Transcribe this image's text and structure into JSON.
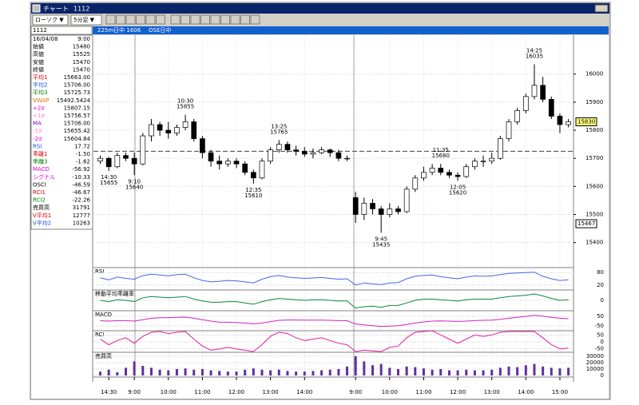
{
  "window": {
    "title": "チャート",
    "code": "1112"
  },
  "toolbar": {
    "chart_type": "ローソク ▼",
    "interval": "5分足 ▼"
  },
  "info_bar": {
    "code": "1112",
    "contract": "225m日中 1606",
    "market": "OSE日中"
  },
  "info_table": {
    "rows": [
      {
        "label": "16/04/08",
        "value": "9:00",
        "color": "#000000"
      },
      {
        "label": "始値",
        "value": "15480",
        "color": "#000000"
      },
      {
        "label": "高値",
        "value": "15525",
        "color": "#000000"
      },
      {
        "label": "安値",
        "value": "15470",
        "color": "#000000"
      },
      {
        "label": "終値",
        "value": "15470",
        "color": "#000000"
      },
      {
        "label": "平均1",
        "value": "15663.00",
        "color": "#e00000"
      },
      {
        "label": "平均2",
        "value": "15706.00",
        "color": "#2050e0"
      },
      {
        "label": "平均3",
        "value": "15725.73",
        "color": "#008000"
      },
      {
        "label": "VWAP",
        "value": "15492.5424",
        "color": "#e07000"
      },
      {
        "label": "+2σ",
        "value": "15807.15",
        "color": "#e000e0"
      },
      {
        "label": "+1σ",
        "value": "15756.57",
        "color": "#ff80c0"
      },
      {
        "label": "MA",
        "value": "15706.00",
        "color": "#8000c0"
      },
      {
        "label": "-1σ",
        "value": "15655.42",
        "color": "#ff80c0"
      },
      {
        "label": "-2σ",
        "value": "15604.84",
        "color": "#e000e0"
      },
      {
        "label": "RSI",
        "value": "17.72",
        "color": "#2050e0"
      },
      {
        "label": "乖離1",
        "value": "-1.50",
        "color": "#e00000"
      },
      {
        "label": "乖離3",
        "value": "-1.62",
        "color": "#008000"
      },
      {
        "label": "MACD",
        "value": "-56.92",
        "color": "#e000e0"
      },
      {
        "label": "シグナル",
        "value": "-10.33",
        "color": "#e000e0"
      },
      {
        "label": "OSCI",
        "value": "-46.59",
        "color": "#000000"
      },
      {
        "label": "RCI1",
        "value": "-46.67",
        "color": "#e00000"
      },
      {
        "label": "RCI2",
        "value": "-22.26",
        "color": "#008000"
      },
      {
        "label": "売買高",
        "value": "31791",
        "color": "#000000"
      },
      {
        "label": "V平均1",
        "value": "12777",
        "color": "#e00000"
      },
      {
        "label": "V平均2",
        "value": "10263",
        "color": "#2050e0"
      }
    ]
  },
  "chart_data": {
    "type": "candlestick",
    "x": [
      0,
      1,
      2,
      3,
      4,
      5,
      6,
      7,
      8,
      9,
      10,
      11,
      12,
      13,
      14,
      15,
      16,
      17,
      18,
      19,
      20,
      21,
      22,
      23,
      24,
      25,
      26,
      27,
      28,
      29,
      30,
      31,
      32,
      33,
      34,
      35,
      36,
      37,
      38,
      39,
      40,
      41,
      42,
      43,
      44,
      45,
      46,
      47,
      48,
      49,
      50,
      51,
      52,
      53,
      54,
      55
    ],
    "open": [
      15690,
      15700,
      15670,
      15710,
      15700,
      15680,
      15780,
      15820,
      15800,
      15790,
      15810,
      15830,
      15770,
      15720,
      15690,
      15680,
      15690,
      15680,
      15650,
      15630,
      15690,
      15730,
      15750,
      15730,
      15725,
      15715,
      15720,
      15730,
      15720,
      15700,
      15560,
      15500,
      15540,
      15520,
      15500,
      15520,
      15510,
      15590,
      15630,
      15650,
      15665,
      15650,
      15640,
      15635,
      15670,
      15690,
      15690,
      15700,
      15770,
      15830,
      15870,
      15920,
      15960,
      15910,
      15850,
      15820
    ],
    "high": [
      15710,
      15705,
      15720,
      15720,
      15720,
      15790,
      15840,
      15830,
      15830,
      15820,
      15855,
      15840,
      15780,
      15730,
      15710,
      15700,
      15700,
      15690,
      15660,
      15700,
      15740,
      15765,
      15760,
      15745,
      15740,
      15735,
      15740,
      15735,
      15730,
      15710,
      15580,
      15560,
      15555,
      15530,
      15540,
      15530,
      15600,
      15640,
      15670,
      15680,
      15680,
      15660,
      15650,
      15680,
      15700,
      15710,
      15720,
      15780,
      15840,
      15880,
      15930,
      16035,
      15990,
      15920,
      15860,
      15840
    ],
    "low": [
      15680,
      15655,
      15665,
      15690,
      15640,
      15675,
      15760,
      15780,
      15770,
      15780,
      15800,
      15760,
      15700,
      15670,
      15660,
      15670,
      15665,
      15640,
      15610,
      15625,
      15680,
      15720,
      15720,
      15710,
      15705,
      15700,
      15715,
      15705,
      15690,
      15690,
      15470,
      15480,
      15500,
      15435,
      15490,
      15500,
      15505,
      15580,
      15620,
      15640,
      15640,
      15630,
      15620,
      15630,
      15660,
      15670,
      15680,
      15695,
      15760,
      15820,
      15860,
      15910,
      15900,
      15840,
      15790,
      15810
    ],
    "close": [
      15700,
      15670,
      15710,
      15700,
      15680,
      15780,
      15820,
      15800,
      15790,
      15810,
      15830,
      15770,
      15720,
      15690,
      15680,
      15690,
      15680,
      15650,
      15630,
      15690,
      15730,
      15750,
      15730,
      15725,
      15715,
      15720,
      15730,
      15720,
      15700,
      15700,
      15500,
      15540,
      15520,
      15500,
      15520,
      15510,
      15590,
      15630,
      15650,
      15665,
      15650,
      15640,
      15635,
      15670,
      15690,
      15690,
      15700,
      15770,
      15830,
      15870,
      15920,
      15960,
      15910,
      15850,
      15820,
      15830
    ],
    "up_color": "#ffffff",
    "down_color": "#000000",
    "xlim": [
      -0.8,
      55.6
    ],
    "ylim": [
      15325,
      16150
    ],
    "xticks": [
      {
        "value": 1,
        "label": "14:30"
      },
      {
        "value": 4,
        "label": "9:00"
      },
      {
        "value": 8,
        "label": "10:00"
      },
      {
        "value": 12,
        "label": "11:00"
      },
      {
        "value": 16,
        "label": "12:00"
      },
      {
        "value": 20,
        "label": "13:00"
      },
      {
        "value": 24,
        "label": "14:00"
      },
      {
        "value": 30,
        "label": "9:00"
      },
      {
        "value": 34,
        "label": "10:00"
      },
      {
        "value": 38,
        "label": "11:00"
      },
      {
        "value": 42,
        "label": "12:00"
      },
      {
        "value": 46,
        "label": "13:00"
      },
      {
        "value": 50,
        "label": "14:00"
      },
      {
        "value": 54,
        "label": "15:00"
      }
    ],
    "yticks": [
      15400,
      15500,
      15600,
      15700,
      15800,
      15900,
      16000
    ],
    "grid": true,
    "reference_line": 15725,
    "last_price": 15830,
    "last_price_color": "#ffff80",
    "axis_marker": 15467,
    "annotations": [
      {
        "time": "14:30",
        "price": 15655,
        "x": 1,
        "side": "below"
      },
      {
        "time": "9:10",
        "price": 15640,
        "x": 4,
        "side": "below"
      },
      {
        "time": "10:30",
        "price": 15855,
        "x": 10,
        "side": "above"
      },
      {
        "time": "12:35",
        "price": 15610,
        "x": 18,
        "side": "below"
      },
      {
        "time": "13:25",
        "price": 15765,
        "x": 21,
        "side": "above"
      },
      {
        "time": "9:45",
        "price": 15435,
        "x": 33,
        "side": "below"
      },
      {
        "time": "11:35",
        "price": 15680,
        "x": 40,
        "side": "above"
      },
      {
        "time": "12:05",
        "price": 15620,
        "x": 42,
        "side": "below"
      },
      {
        "time": "14:25",
        "price": 16035,
        "x": 51,
        "side": "above"
      }
    ],
    "panels": [
      {
        "type": "line",
        "title": "RSI",
        "ylim": [
          0,
          100
        ],
        "yticks": [
          20,
          80
        ],
        "color": "#4169e1",
        "values": [
          55,
          45,
          58,
          52,
          48,
          65,
          72,
          68,
          64,
          70,
          72,
          55,
          42,
          35,
          38,
          42,
          40,
          35,
          30,
          48,
          60,
          66,
          58,
          55,
          52,
          54,
          56,
          52,
          48,
          50,
          20,
          30,
          25,
          22,
          30,
          32,
          50,
          62,
          66,
          68,
          60,
          55,
          50,
          58,
          64,
          62,
          64,
          70,
          76,
          78,
          80,
          82,
          62,
          50,
          42,
          45
        ]
      },
      {
        "type": "line",
        "title": "移動平均乖離率",
        "ylim": [
          -1.5,
          1.5
        ],
        "yticks": [
          0
        ],
        "color": "#0a8a3a",
        "values": [
          0,
          -0.2,
          0.1,
          0,
          -0.2,
          0.4,
          0.6,
          0.5,
          0.4,
          0.5,
          0.6,
          0.2,
          -0.1,
          -0.3,
          -0.3,
          -0.2,
          -0.2,
          -0.4,
          -0.6,
          -0.2,
          0.1,
          0.3,
          0.2,
          0.1,
          0,
          0.1,
          0.1,
          0,
          -0.1,
          -0.1,
          -1.2,
          -1.0,
          -0.9,
          -1.1,
          -0.8,
          -0.8,
          -0.4,
          0,
          0.2,
          0.2,
          0.1,
          0,
          -0.1,
          0.1,
          0.2,
          0.2,
          0.2,
          0.4,
          0.6,
          0.7,
          0.8,
          1.0,
          0.7,
          0.3,
          0,
          0.1
        ]
      },
      {
        "type": "line",
        "title": "MACD",
        "ylim": [
          -100,
          100
        ],
        "yticks": [
          -50,
          50
        ],
        "color": "#d020c0",
        "values": [
          5,
          0,
          5,
          5,
          0,
          15,
          30,
          35,
          35,
          40,
          42,
          30,
          15,
          0,
          -10,
          -12,
          -14,
          -20,
          -28,
          -20,
          -5,
          8,
          12,
          12,
          10,
          10,
          10,
          8,
          5,
          4,
          -30,
          -40,
          -48,
          -55,
          -52,
          -48,
          -35,
          -20,
          -8,
          0,
          2,
          0,
          -3,
          0,
          5,
          8,
          10,
          18,
          30,
          40,
          50,
          60,
          52,
          40,
          30,
          25
        ]
      },
      {
        "type": "line",
        "title": "RCI",
        "ylim": [
          -75,
          75
        ],
        "yticks": [
          -50,
          0,
          50
        ],
        "color": "#e0209a",
        "values": [
          20,
          -20,
          10,
          30,
          -10,
          40,
          70,
          75,
          60,
          70,
          75,
          20,
          -30,
          -60,
          -50,
          -40,
          -50,
          -60,
          -70,
          -20,
          40,
          70,
          60,
          30,
          10,
          20,
          30,
          10,
          -10,
          -20,
          -70,
          -60,
          -65,
          -70,
          -40,
          -30,
          30,
          70,
          75,
          80,
          50,
          20,
          -10,
          20,
          50,
          40,
          50,
          70,
          75,
          75,
          75,
          75,
          30,
          -20,
          -50,
          -45
        ]
      },
      {
        "type": "bar",
        "title": "売買高",
        "ylim": [
          0,
          35000
        ],
        "yticks": [
          0,
          10000,
          20000,
          30000
        ],
        "color": "#6030a0",
        "values": [
          6000,
          9000,
          5000,
          12000,
          22000,
          15000,
          12000,
          9000,
          8000,
          10000,
          11000,
          9000,
          10000,
          8000,
          7000,
          6000,
          6000,
          9000,
          11000,
          9000,
          8000,
          9000,
          7000,
          6000,
          6000,
          7000,
          8000,
          9000,
          10000,
          14000,
          30000,
          22000,
          16000,
          18000,
          12000,
          10000,
          14000,
          13000,
          11000,
          9000,
          10000,
          8000,
          8000,
          9000,
          8000,
          8000,
          9000,
          12000,
          14000,
          13000,
          16000,
          18000,
          14000,
          12000,
          11000,
          12000
        ]
      }
    ]
  }
}
